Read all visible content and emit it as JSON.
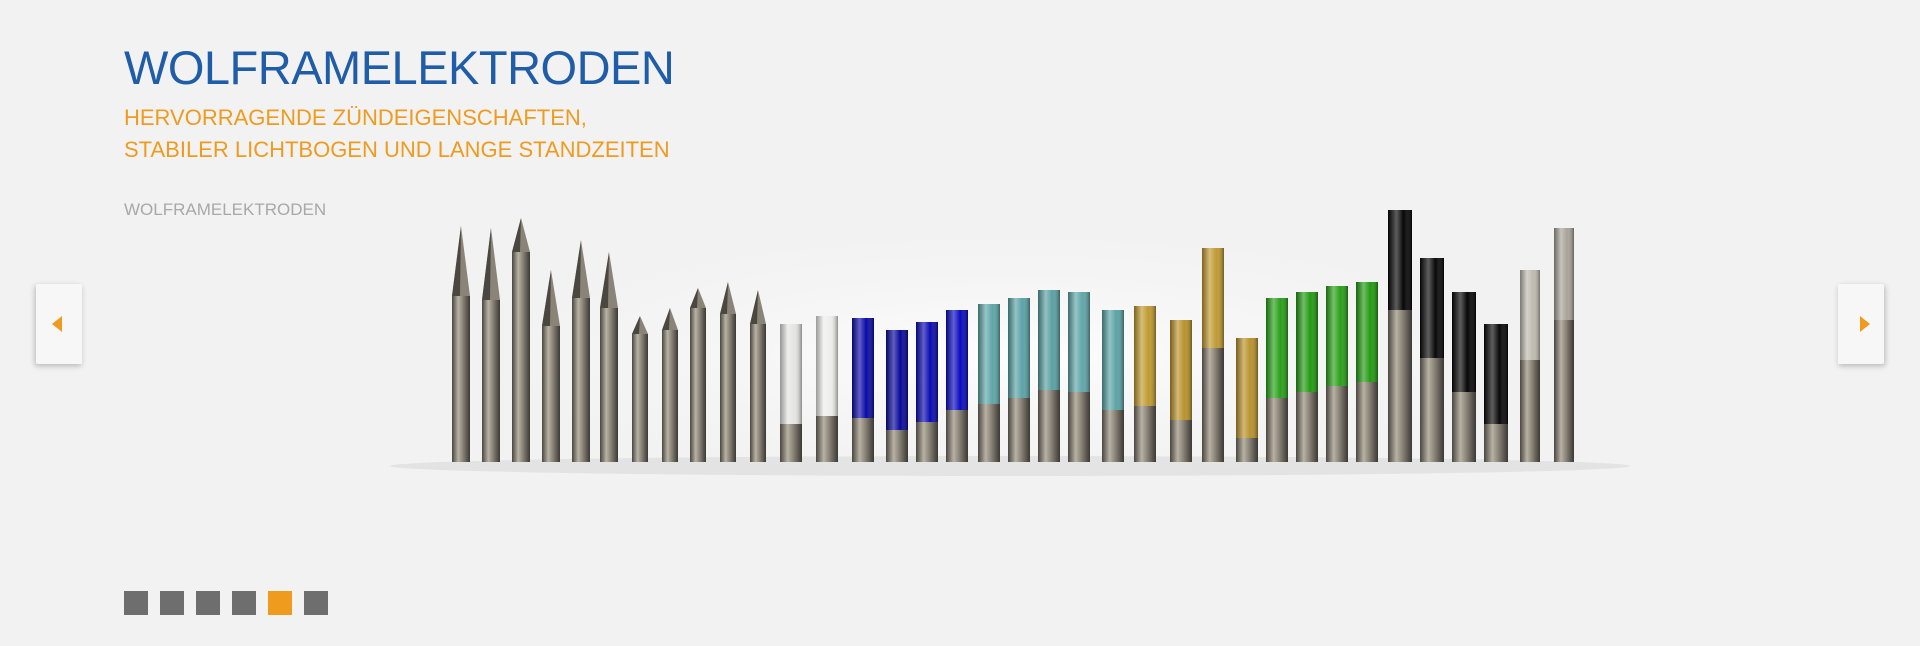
{
  "slide": {
    "title": "WOLFRAMELEKTRODEN",
    "subtitle": "HERVORRAGENDE ZÜNDEIGENSCHAFTEN, STABILER LICHTBOGEN UND LANGE STANDZEITEN",
    "caption": "WOLFRAMELEKTRODEN"
  },
  "navigation": {
    "prev_icon": "arrow-left-icon",
    "next_icon": "arrow-right-icon",
    "accent_color": "#ef9b1e"
  },
  "pager": {
    "count": 6,
    "active_index": 4
  },
  "colors": {
    "title": "#1f5da8",
    "subtitle": "#ef9b1e",
    "caption": "#a8a8a8",
    "pager_inactive": "#6e6e6e",
    "pager_active": "#ef9b1e"
  }
}
